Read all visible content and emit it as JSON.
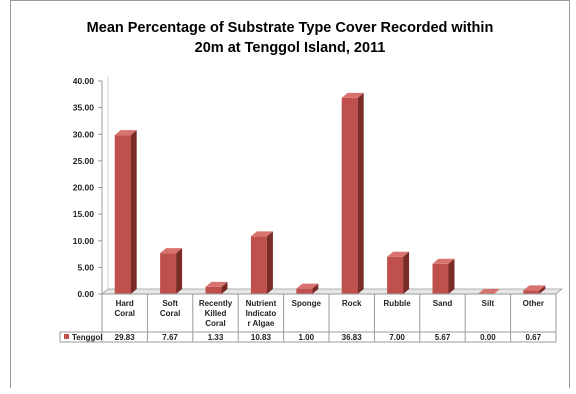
{
  "title_line1": "Mean Percentage of Substrate Type Cover Recorded within",
  "title_line2": "20m at Tenggol Island, 2011",
  "chart_data": {
    "type": "bar",
    "title": "Mean Percentage of Substrate Type Cover Recorded within 20m at Tenggol Island, 2011",
    "categories": [
      [
        "Hard",
        "Coral"
      ],
      [
        "Soft",
        "Coral"
      ],
      [
        "Recently",
        "Killed",
        "Coral"
      ],
      [
        "Nutrient",
        "Indicato",
        "r Algae"
      ],
      [
        "Sponge"
      ],
      [
        "Rock"
      ],
      [
        "Rubble"
      ],
      [
        "Sand"
      ],
      [
        "Silt"
      ],
      [
        "Other"
      ]
    ],
    "series": [
      {
        "name": "Tenggol",
        "values": [
          29.83,
          7.67,
          1.33,
          10.83,
          1.0,
          36.83,
          7.0,
          5.67,
          0.0,
          0.67
        ],
        "labels": [
          "29.83",
          "7.67",
          "1.33",
          "10.83",
          "1.00",
          "36.83",
          "7.00",
          "5.67",
          "0.00",
          "0.67"
        ],
        "color": "#c0504d"
      }
    ],
    "ylim": [
      0,
      40
    ],
    "yticks": [
      "0.00",
      "5.00",
      "10.00",
      "15.00",
      "20.00",
      "25.00",
      "30.00",
      "35.00",
      "40.00"
    ],
    "grid": false,
    "legend": "data-table"
  }
}
